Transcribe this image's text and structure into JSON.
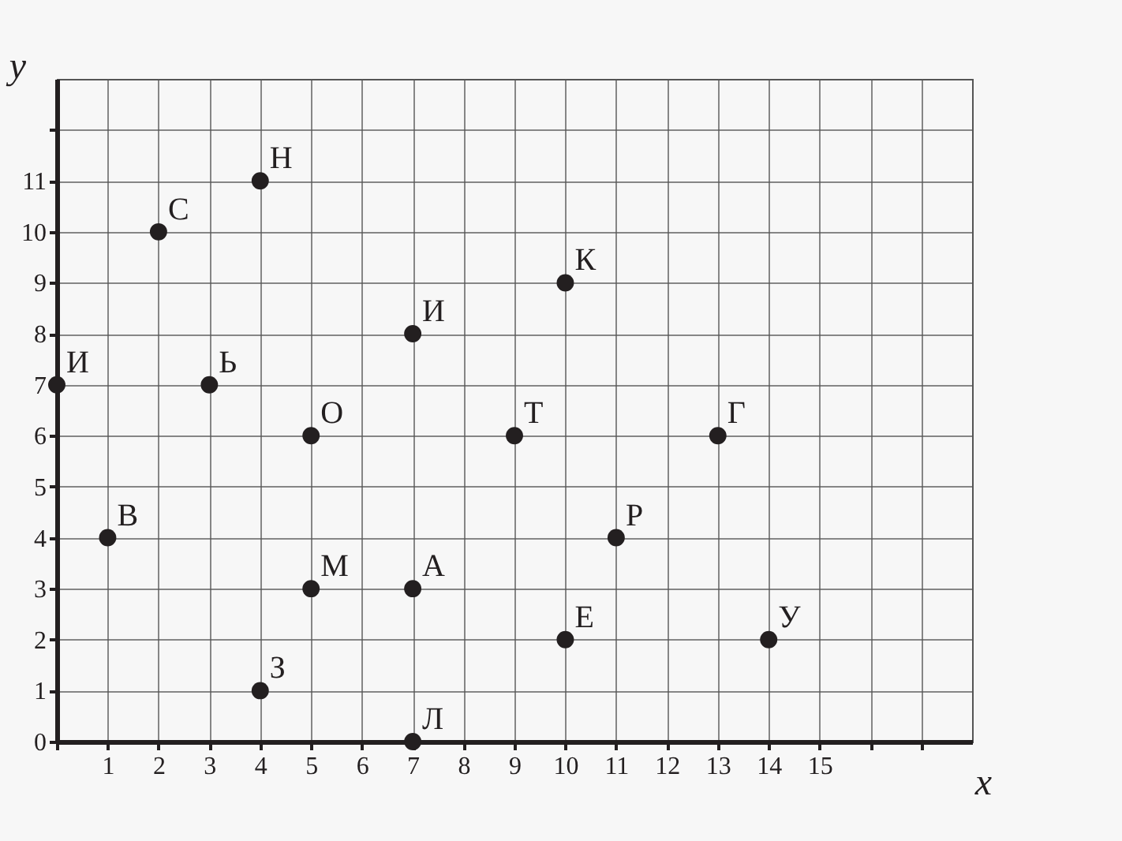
{
  "chart_data": {
    "type": "scatter",
    "xlabel": "x",
    "ylabel": "y",
    "x": [
      0,
      1,
      2,
      3,
      4,
      4,
      5,
      5,
      7,
      7,
      7,
      9,
      10,
      10,
      11,
      13,
      14
    ],
    "series": [
      {
        "color": "#231f20",
        "values": [
          7,
          4,
          10,
          7,
          11,
          1,
          6,
          3,
          8,
          3,
          0,
          6,
          9,
          2,
          4,
          6,
          2
        ]
      }
    ],
    "annotations": [
      {
        "text": "И",
        "x": 0,
        "y": 7
      },
      {
        "text": "В",
        "x": 1,
        "y": 4
      },
      {
        "text": "С",
        "x": 2,
        "y": 10
      },
      {
        "text": "Ь",
        "x": 3,
        "y": 7
      },
      {
        "text": "Н",
        "x": 4,
        "y": 11
      },
      {
        "text": "З",
        "x": 4,
        "y": 1
      },
      {
        "text": "О",
        "x": 5,
        "y": 6
      },
      {
        "text": "М",
        "x": 5,
        "y": 3
      },
      {
        "text": "И",
        "x": 7,
        "y": 8
      },
      {
        "text": "А",
        "x": 7,
        "y": 3
      },
      {
        "text": "Л",
        "x": 7,
        "y": 0
      },
      {
        "text": "Т",
        "x": 9,
        "y": 6
      },
      {
        "text": "К",
        "x": 10,
        "y": 9
      },
      {
        "text": "Е",
        "x": 10,
        "y": 2
      },
      {
        "text": "Р",
        "x": 11,
        "y": 4
      },
      {
        "text": "Г",
        "x": 13,
        "y": 6
      },
      {
        "text": "У",
        "x": 14,
        "y": 2
      }
    ],
    "xlim": [
      0,
      18
    ],
    "ylim": [
      0,
      13
    ],
    "xticks": [
      {
        "value": 0,
        "label": null
      },
      1,
      2,
      3,
      4,
      5,
      6,
      7,
      8,
      9,
      10,
      11,
      12,
      13,
      14,
      15,
      {
        "value": 16,
        "label": null
      },
      {
        "value": 17,
        "label": null
      }
    ],
    "yticks": [
      0,
      1,
      2,
      3,
      4,
      5,
      6,
      7,
      8,
      9,
      10,
      11,
      {
        "value": 12,
        "label": null
      }
    ],
    "grid": true,
    "marker": "circle"
  }
}
